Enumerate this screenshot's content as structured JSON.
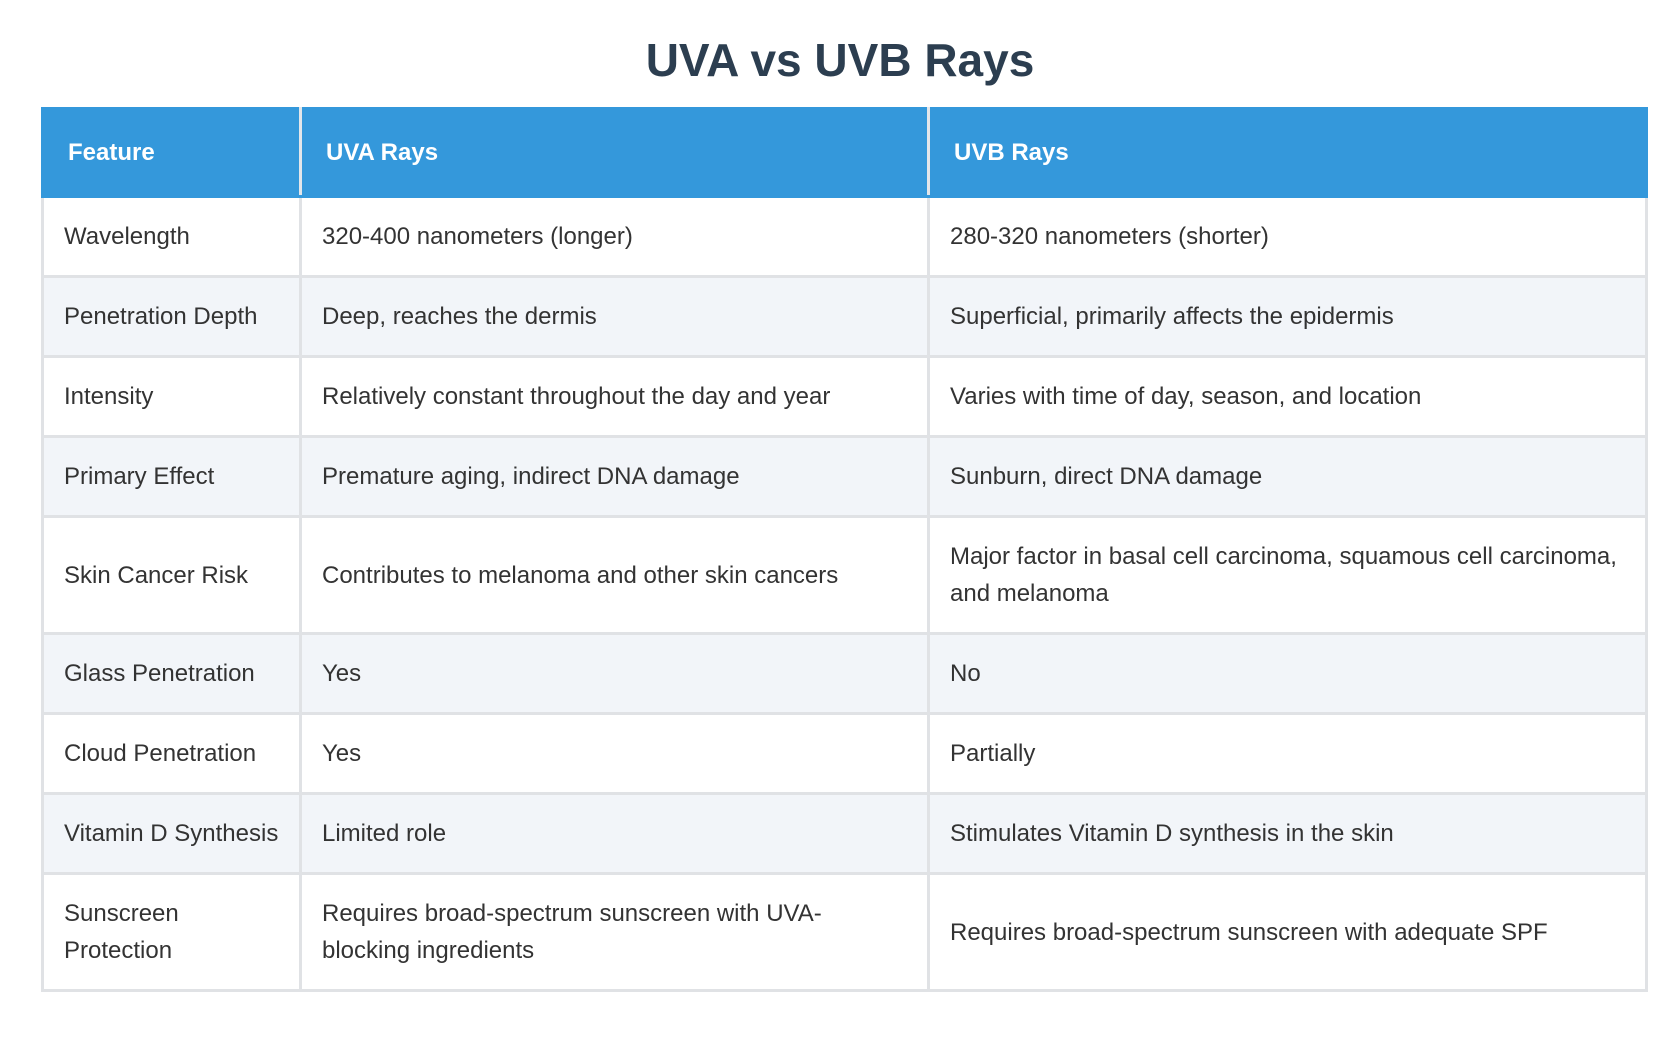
{
  "title": "UVA vs UVB Rays",
  "table": {
    "headers": [
      "Feature",
      "UVA Rays",
      "UVB Rays"
    ],
    "rows": [
      [
        "Wavelength",
        "320-400 nanometers (longer)",
        "280-320 nanometers (shorter)"
      ],
      [
        "Penetration Depth",
        "Deep, reaches the dermis",
        "Superficial, primarily affects the epidermis"
      ],
      [
        "Intensity",
        "Relatively constant throughout the day and year",
        "Varies with time of day, season, and location"
      ],
      [
        "Primary Effect",
        "Premature aging, indirect DNA damage",
        "Sunburn, direct DNA damage"
      ],
      [
        "Skin Cancer Risk",
        "Contributes to melanoma and other skin cancers",
        "Major factor in basal cell carcinoma, squamous cell carcinoma, and melanoma"
      ],
      [
        "Glass Penetration",
        "Yes",
        "No"
      ],
      [
        "Cloud Penetration",
        "Yes",
        "Partially"
      ],
      [
        "Vitamin D Synthesis",
        "Limited role",
        "Stimulates Vitamin D synthesis in the skin"
      ],
      [
        "Sunscreen Protection",
        "Requires broad-spectrum sunscreen with UVA-blocking ingredients",
        "Requires broad-spectrum sunscreen with adequate SPF"
      ]
    ]
  }
}
